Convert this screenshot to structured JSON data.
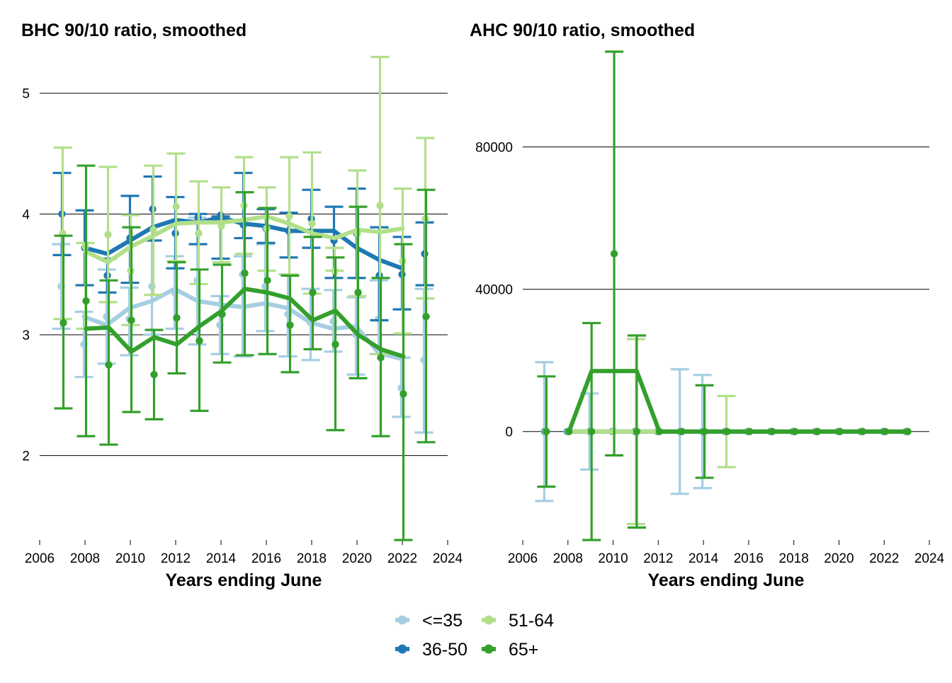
{
  "chart_data": [
    {
      "type": "line",
      "title": "BHC 90/10 ratio, smoothed",
      "xlabel": "Years ending June",
      "ylabel": "",
      "xlim": [
        2006,
        2024
      ],
      "ylim": [
        1.3,
        5.35
      ],
      "xticks": [
        2006,
        2008,
        2010,
        2012,
        2014,
        2016,
        2018,
        2020,
        2022,
        2024
      ],
      "yticks": [
        2,
        3,
        4,
        5
      ],
      "grid": "horizontal",
      "series": [
        {
          "name": "<=35",
          "color": "#a6cee3",
          "x": [
            2007,
            2008,
            2009,
            2010,
            2011,
            2012,
            2013,
            2014,
            2015,
            2016,
            2017,
            2018,
            2019,
            2020,
            2021,
            2022,
            2023
          ],
          "point": [
            3.4,
            2.92,
            3.15,
            3.13,
            3.4,
            3.35,
            3.45,
            3.08,
            3.5,
            3.4,
            3.17,
            3.1,
            3.11,
            3.0,
            3.13,
            2.56,
            2.79
          ],
          "lower": [
            3.05,
            2.65,
            2.76,
            2.83,
            3.0,
            3.05,
            2.92,
            2.84,
            2.82,
            3.03,
            2.82,
            2.79,
            2.86,
            2.67,
            2.84,
            2.32,
            2.19
          ],
          "upper": [
            3.75,
            3.19,
            3.54,
            3.39,
            3.78,
            3.65,
            3.97,
            3.32,
            3.65,
            3.75,
            3.5,
            3.38,
            3.37,
            3.31,
            3.45,
            2.81,
            3.38
          ],
          "smoothed_x": [
            2008,
            2009,
            2010,
            2011,
            2012,
            2013,
            2014,
            2015,
            2016,
            2017,
            2018,
            2019,
            2020,
            2021,
            2022
          ],
          "smoothed": [
            3.15,
            3.08,
            3.22,
            3.28,
            3.38,
            3.28,
            3.25,
            3.23,
            3.26,
            3.22,
            3.1,
            3.05,
            3.07,
            2.85,
            2.8
          ]
        },
        {
          "name": "36-50",
          "color": "#1f78b4",
          "x": [
            2007,
            2008,
            2009,
            2010,
            2011,
            2012,
            2013,
            2014,
            2015,
            2016,
            2017,
            2018,
            2019,
            2020,
            2021,
            2022,
            2023
          ],
          "point": [
            4.0,
            3.72,
            3.49,
            3.8,
            4.04,
            3.84,
            3.97,
            3.99,
            3.91,
            3.88,
            3.86,
            3.96,
            3.78,
            3.84,
            3.49,
            3.5,
            3.67
          ],
          "lower": [
            3.66,
            3.41,
            3.35,
            3.43,
            3.78,
            3.55,
            3.75,
            3.63,
            3.8,
            3.76,
            3.64,
            3.72,
            3.47,
            3.47,
            3.12,
            3.21,
            3.41
          ],
          "upper": [
            4.34,
            4.03,
            3.63,
            4.15,
            4.31,
            4.14,
            4.0,
            3.98,
            4.34,
            4.04,
            4.01,
            4.2,
            4.06,
            4.21,
            3.89,
            3.81,
            3.93
          ],
          "smoothed_x": [
            2008,
            2009,
            2010,
            2011,
            2012,
            2013,
            2014,
            2015,
            2016,
            2017,
            2018,
            2019,
            2020,
            2021,
            2022
          ],
          "smoothed": [
            3.72,
            3.67,
            3.78,
            3.89,
            3.95,
            3.93,
            3.97,
            3.92,
            3.9,
            3.86,
            3.86,
            3.86,
            3.72,
            3.62,
            3.55
          ]
        },
        {
          "name": "51-64",
          "color": "#b2df8a",
          "x": [
            2007,
            2008,
            2009,
            2010,
            2011,
            2012,
            2013,
            2014,
            2015,
            2016,
            2017,
            2018,
            2019,
            2020,
            2021,
            2022,
            2023
          ],
          "point": [
            3.84,
            3.73,
            3.83,
            3.53,
            3.87,
            4.06,
            3.84,
            3.9,
            4.07,
            3.88,
            3.98,
            3.92,
            3.53,
            3.84,
            4.07,
            3.61,
            3.96
          ],
          "lower": [
            3.13,
            3.05,
            3.27,
            3.08,
            3.33,
            3.61,
            3.42,
            3.6,
            3.67,
            3.53,
            3.5,
            3.34,
            3.53,
            3.32,
            2.84,
            3.01,
            3.3
          ],
          "upper": [
            4.55,
            3.76,
            4.39,
            3.99,
            4.4,
            4.5,
            4.27,
            4.22,
            4.47,
            4.22,
            4.47,
            4.51,
            3.72,
            4.36,
            5.3,
            4.21,
            4.63
          ],
          "smoothed_x": [
            2008,
            2009,
            2010,
            2011,
            2012,
            2013,
            2014,
            2015,
            2016,
            2017,
            2018,
            2019,
            2020,
            2021,
            2022
          ],
          "smoothed": [
            3.69,
            3.6,
            3.73,
            3.82,
            3.92,
            3.93,
            3.93,
            3.95,
            3.98,
            3.92,
            3.84,
            3.8,
            3.87,
            3.85,
            3.88
          ]
        },
        {
          "name": "65+",
          "color": "#33a02c",
          "x": [
            2007,
            2008,
            2009,
            2010,
            2011,
            2012,
            2013,
            2014,
            2015,
            2016,
            2017,
            2018,
            2019,
            2020,
            2021,
            2022,
            2023
          ],
          "point": [
            3.1,
            3.28,
            2.75,
            3.12,
            2.67,
            3.14,
            2.95,
            3.17,
            3.51,
            3.45,
            3.08,
            3.35,
            2.92,
            3.35,
            2.81,
            2.51,
            3.15
          ],
          "lower": [
            2.39,
            2.16,
            2.09,
            2.36,
            2.3,
            2.68,
            2.37,
            2.77,
            2.83,
            2.84,
            2.69,
            2.88,
            2.21,
            2.64,
            2.16,
            1.3,
            2.11
          ],
          "upper": [
            3.82,
            4.4,
            3.45,
            3.89,
            3.04,
            3.6,
            3.54,
            3.58,
            4.18,
            4.05,
            3.49,
            3.81,
            3.64,
            4.06,
            3.47,
            3.75,
            4.2
          ],
          "smoothed_x": [
            2008,
            2009,
            2010,
            2011,
            2012,
            2013,
            2014,
            2015,
            2016,
            2017,
            2018,
            2019,
            2020,
            2021,
            2022
          ],
          "smoothed": [
            3.05,
            3.06,
            2.86,
            2.98,
            2.92,
            3.07,
            3.2,
            3.38,
            3.35,
            3.3,
            3.12,
            3.2,
            3.0,
            2.88,
            2.82
          ]
        }
      ]
    },
    {
      "type": "line",
      "title": "AHC 90/10 ratio, smoothed",
      "xlabel": "Years ending June",
      "ylabel": "",
      "xlim": [
        2006,
        2024
      ],
      "ylim": [
        -30500,
        107000
      ],
      "xticks": [
        2006,
        2008,
        2010,
        2012,
        2014,
        2016,
        2018,
        2020,
        2022,
        2024
      ],
      "yticks": [
        0,
        40000,
        80000
      ],
      "grid": "horizontal",
      "series": [
        {
          "name": "<=35",
          "color": "#a6cee3",
          "x": [
            2007,
            2008,
            2009,
            2010,
            2011,
            2012,
            2013,
            2014,
            2015,
            2016,
            2017,
            2018,
            2019,
            2020,
            2021,
            2022,
            2023
          ],
          "point": [
            0,
            0,
            0,
            0,
            0,
            0,
            0,
            0,
            0,
            0,
            0,
            0,
            0,
            0,
            0,
            0,
            0
          ],
          "lower": [
            -19500,
            null,
            -10700,
            null,
            null,
            null,
            -17500,
            -15900,
            null,
            null,
            null,
            null,
            null,
            null,
            null,
            null,
            null
          ],
          "upper": [
            19500,
            null,
            10700,
            null,
            null,
            null,
            17500,
            15900,
            null,
            null,
            null,
            null,
            null,
            null,
            null,
            null,
            null
          ],
          "smoothed_x": [
            2008,
            2009,
            2010,
            2011,
            2012,
            2013,
            2014,
            2015,
            2016,
            2017,
            2018,
            2019,
            2020,
            2021,
            2022,
            2023
          ],
          "smoothed": [
            0,
            0,
            0,
            0,
            0,
            0,
            0,
            0,
            0,
            0,
            0,
            0,
            0,
            0,
            0,
            0
          ]
        },
        {
          "name": "36-50",
          "color": "#1f78b4",
          "x": [
            2007,
            2008,
            2009,
            2010,
            2011,
            2012,
            2013,
            2014,
            2015,
            2016,
            2017,
            2018,
            2019,
            2020,
            2021,
            2022,
            2023
          ],
          "point": [
            0,
            0,
            0,
            0,
            0,
            0,
            0,
            0,
            0,
            0,
            0,
            0,
            0,
            0,
            0,
            0,
            0
          ],
          "lower": [
            null,
            null,
            null,
            null,
            null,
            null,
            null,
            null,
            null,
            null,
            null,
            null,
            null,
            null,
            null,
            null,
            null
          ],
          "upper": [
            null,
            null,
            null,
            null,
            null,
            null,
            null,
            null,
            null,
            null,
            null,
            null,
            null,
            null,
            null,
            null,
            null
          ],
          "smoothed_x": [
            2008,
            2009,
            2010,
            2011,
            2012,
            2013,
            2014,
            2015,
            2016,
            2017,
            2018,
            2019,
            2020,
            2021,
            2022,
            2023
          ],
          "smoothed": [
            0,
            0,
            0,
            0,
            0,
            0,
            0,
            0,
            0,
            0,
            0,
            0,
            0,
            0,
            0,
            0
          ]
        },
        {
          "name": "51-64",
          "color": "#b2df8a",
          "x": [
            2007,
            2008,
            2009,
            2010,
            2011,
            2012,
            2013,
            2014,
            2015,
            2016,
            2017,
            2018,
            2019,
            2020,
            2021,
            2022,
            2023
          ],
          "point": [
            0,
            0,
            0,
            0,
            0,
            0,
            0,
            0,
            0,
            0,
            0,
            0,
            0,
            0,
            0,
            0,
            0
          ],
          "lower": [
            null,
            null,
            null,
            null,
            -26000,
            null,
            null,
            null,
            -10000,
            null,
            null,
            null,
            null,
            null,
            null,
            null,
            null
          ],
          "upper": [
            null,
            null,
            null,
            null,
            26000,
            null,
            null,
            null,
            10000,
            null,
            null,
            null,
            null,
            null,
            null,
            null,
            null
          ],
          "smoothed_x": [
            2008,
            2009,
            2010,
            2011,
            2012,
            2013,
            2014,
            2015,
            2016,
            2017,
            2018,
            2019,
            2020,
            2021,
            2022,
            2023
          ],
          "smoothed": [
            0,
            0,
            0,
            0,
            0,
            0,
            0,
            0,
            0,
            0,
            0,
            0,
            0,
            0,
            0,
            0
          ]
        },
        {
          "name": "65+",
          "color": "#33a02c",
          "x": [
            2007,
            2008,
            2009,
            2010,
            2011,
            2012,
            2013,
            2014,
            2015,
            2016,
            2017,
            2018,
            2019,
            2020,
            2021,
            2022,
            2023
          ],
          "point": [
            0,
            0,
            0,
            50000,
            0,
            0,
            0,
            0,
            0,
            0,
            0,
            0,
            0,
            0,
            0,
            0,
            0
          ],
          "lower": [
            -15500,
            null,
            -30500,
            -6700,
            -27000,
            null,
            null,
            -13000,
            null,
            null,
            null,
            null,
            null,
            null,
            null,
            null,
            null
          ],
          "upper": [
            15500,
            null,
            30500,
            106800,
            27000,
            null,
            null,
            13000,
            null,
            null,
            null,
            null,
            null,
            null,
            null,
            null,
            null
          ],
          "smoothed_x": [
            2008,
            2009,
            2010,
            2011,
            2012,
            2013,
            2014,
            2015,
            2016,
            2017,
            2018,
            2019,
            2020,
            2021,
            2022,
            2023
          ],
          "smoothed": [
            0,
            17000,
            17000,
            17000,
            0,
            0,
            0,
            0,
            0,
            0,
            0,
            0,
            0,
            0,
            0,
            0
          ]
        }
      ]
    }
  ],
  "legend": {
    "placement": "bottom",
    "items": [
      {
        "label": "<=35",
        "color": "#a6cee3"
      },
      {
        "label": "51-64",
        "color": "#b2df8a"
      },
      {
        "label": "36-50",
        "color": "#1f78b4"
      },
      {
        "label": "65+",
        "color": "#33a02c"
      }
    ]
  }
}
